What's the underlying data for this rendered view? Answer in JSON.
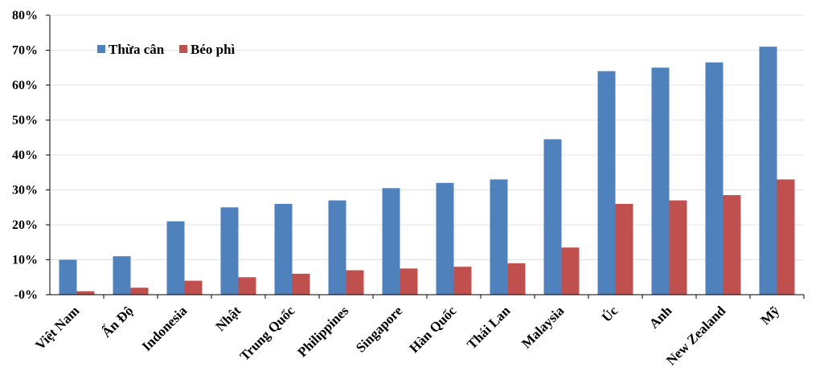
{
  "chart_data": {
    "type": "bar",
    "title": "",
    "xlabel": "",
    "ylabel": "",
    "categories": [
      "Việt Nam",
      "Ấn Độ",
      "Indonesia",
      "Nhật",
      "Trung Quốc",
      "Philippines",
      "Singapore",
      "Hàn Quốc",
      "Thái Lan",
      "Malaysia",
      "Úc",
      "Anh",
      "New Zealand",
      "Mỹ"
    ],
    "series": [
      {
        "name": "Thừa cân",
        "color": "#4F81BD",
        "values": [
          10,
          11,
          21,
          25,
          26,
          27,
          30.5,
          32,
          33,
          44.5,
          64,
          65,
          66.5,
          71
        ]
      },
      {
        "name": "Béo phì",
        "color": "#C0504D",
        "values": [
          1,
          2,
          4,
          5,
          6,
          7,
          7.5,
          8,
          9,
          13.5,
          26,
          27,
          28.5,
          33
        ]
      }
    ],
    "ylim": [
      0,
      80
    ],
    "yticks": [
      "-0%",
      "10%",
      "20%",
      "30%",
      "40%",
      "50%",
      "60%",
      "70%",
      "80%"
    ],
    "grid": true,
    "legend_position": "top-left"
  }
}
